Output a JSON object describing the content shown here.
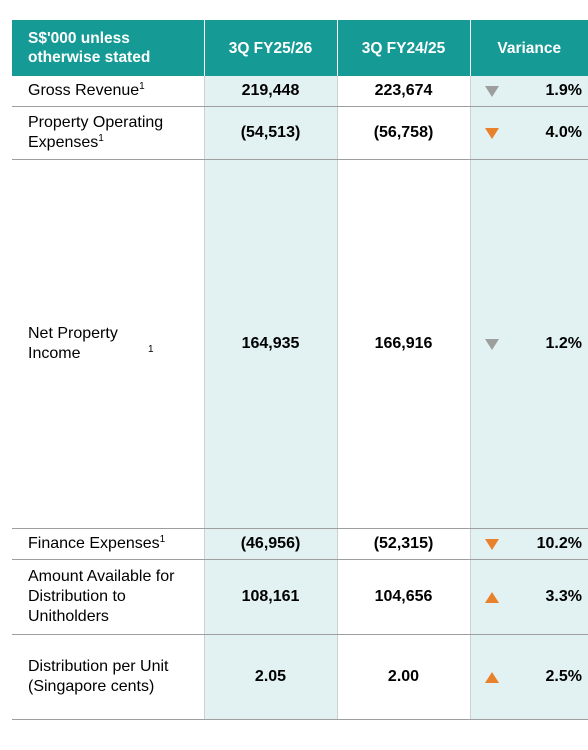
{
  "header": {
    "col1": "S$'000 unless otherwise stated",
    "col2": "3Q FY25/26",
    "col3": "3Q FY24/25",
    "col4": "Variance"
  },
  "rows": [
    {
      "label": "Gross Revenue",
      "note": "1",
      "cur": "219,448",
      "prev": "223,674",
      "direction": "down",
      "color": "#9e9e9e",
      "variance": "1.9%"
    },
    {
      "label": "Property Operating Expenses",
      "note": "1",
      "cur": "(54,513)",
      "prev": "(56,758)",
      "direction": "down",
      "color": "#e8812a",
      "variance": "4.0%"
    },
    {
      "label": "Net Property Income",
      "note": "1",
      "cur": "164,935",
      "prev": "166,916",
      "direction": "down",
      "color": "#9e9e9e",
      "variance": "1.2%"
    },
    {
      "label": "Finance Expenses",
      "note": "1",
      "cur": "(46,956)",
      "prev": "(52,315)",
      "direction": "down",
      "color": "#e8812a",
      "variance": "10.2%"
    },
    {
      "label": "Amount Available for Distribution to Unitholders",
      "note": "",
      "cur": "108,161",
      "prev": "104,656",
      "direction": "up",
      "color": "#e8812a",
      "variance": "3.3%"
    },
    {
      "label": "Distribution per Unit (Singapore cents)",
      "note": "",
      "cur": "2.05",
      "prev": "2.00",
      "direction": "up",
      "color": "#e8812a",
      "variance": "2.5%"
    }
  ]
}
